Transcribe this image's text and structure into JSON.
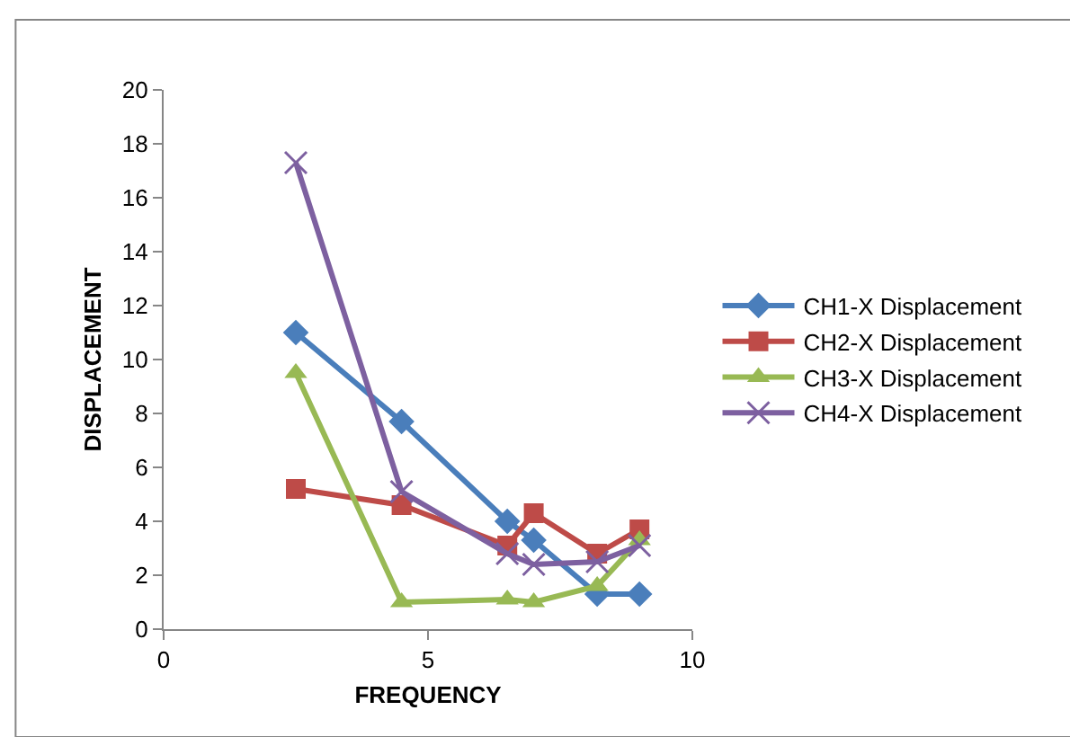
{
  "chart_data": {
    "type": "line",
    "xlabel": "FREQUENCY",
    "ylabel": "DISPLACEMENT",
    "x": [
      2.5,
      4.5,
      6.5,
      7.0,
      8.2,
      9.0
    ],
    "series": [
      {
        "name": "CH1-X Displacement",
        "color": "#4a7ebb",
        "marker": "diamond",
        "values": [
          11.0,
          7.7,
          4.0,
          3.3,
          1.3,
          1.3
        ]
      },
      {
        "name": "CH2-X Displacement",
        "color": "#be4b48",
        "marker": "square",
        "values": [
          5.2,
          4.6,
          3.1,
          4.3,
          2.8,
          3.7
        ]
      },
      {
        "name": "CH3-X Displacement",
        "color": "#98b954",
        "marker": "triangle",
        "values": [
          9.5,
          1.0,
          1.1,
          1.0,
          1.6,
          3.3
        ]
      },
      {
        "name": "CH4-X Displacement",
        "color": "#7d60a0",
        "marker": "cross",
        "values": [
          17.3,
          5.1,
          2.8,
          2.4,
          2.5,
          3.1
        ]
      }
    ],
    "xlim": [
      0,
      10
    ],
    "xticks": [
      0,
      5,
      10
    ],
    "ylim": [
      0,
      20
    ],
    "yticks": [
      0,
      2,
      4,
      6,
      8,
      10,
      12,
      14,
      16,
      18,
      20
    ],
    "legend": "right",
    "line_style": "solid"
  }
}
